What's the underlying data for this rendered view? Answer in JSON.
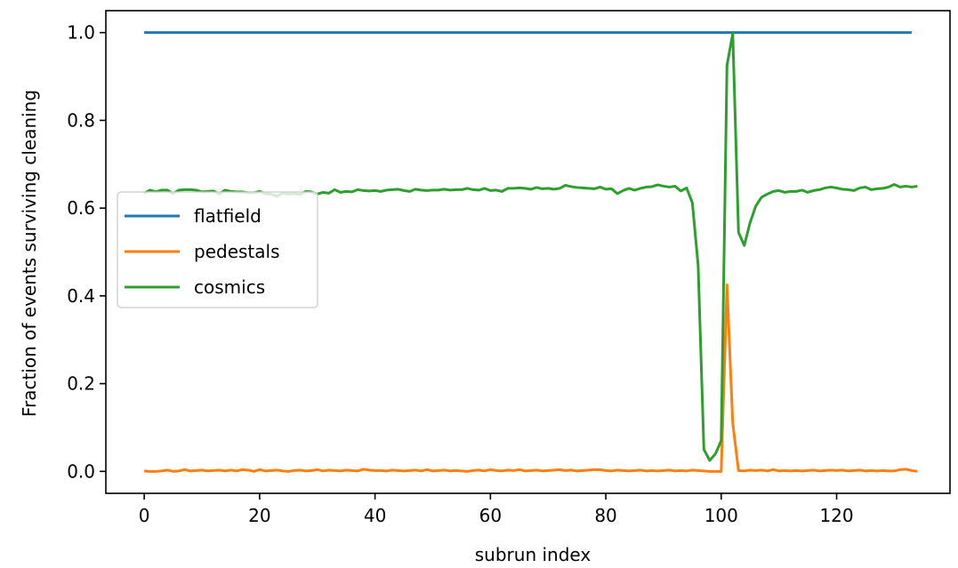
{
  "chart_data": {
    "type": "line",
    "xlabel": "subrun index",
    "ylabel": "Fraction of events surviving cleaning",
    "xlim": [
      -6.65,
      139.65
    ],
    "ylim": [
      -0.05,
      1.05
    ],
    "xticks": [
      0,
      20,
      40,
      60,
      80,
      100,
      120
    ],
    "yticks": [
      0.0,
      0.2,
      0.4,
      0.6,
      0.8,
      1.0
    ],
    "grid": false,
    "legend": "center-left",
    "series": [
      {
        "name": "flatfield",
        "color": "#1f77b4",
        "values": [
          1,
          1,
          1,
          1,
          1,
          1,
          1,
          1,
          1,
          1,
          1,
          1,
          1,
          1,
          1,
          1,
          1,
          1,
          1,
          1,
          1,
          1,
          1,
          1,
          1,
          1,
          1,
          1,
          1,
          1,
          1,
          1,
          1,
          1,
          1,
          1,
          1,
          1,
          1,
          1,
          1,
          1,
          1,
          1,
          1,
          1,
          1,
          1,
          1,
          1,
          1,
          1,
          1,
          1,
          1,
          1,
          1,
          1,
          1,
          1,
          1,
          1,
          1,
          1,
          1,
          1,
          1,
          1,
          1,
          1,
          1,
          1,
          1,
          1,
          1,
          1,
          1,
          1,
          1,
          1,
          1,
          1,
          1,
          1,
          1,
          1,
          1,
          1,
          1,
          1,
          1,
          1,
          1,
          1,
          1,
          1,
          1,
          1,
          1,
          1,
          1,
          1,
          1,
          1,
          1,
          1,
          1,
          1,
          1,
          1,
          1,
          1,
          1,
          1,
          1,
          1,
          1,
          1,
          1,
          1,
          1,
          1,
          1,
          1,
          1,
          1,
          1,
          1,
          1,
          1,
          1,
          1,
          1,
          1
        ]
      },
      {
        "name": "pedestals",
        "color": "#ff7f0e",
        "values": [
          0.001,
          0.0,
          0.0,
          0.001,
          0.003,
          0.0,
          0.001,
          0.004,
          0.001,
          0.002,
          0.003,
          0.001,
          0.002,
          0.003,
          0.001,
          0.003,
          0.001,
          0.004,
          0.003,
          0.0,
          0.004,
          0.001,
          0.002,
          0.003,
          0.001,
          0.0,
          0.002,
          0.003,
          0.001,
          0.002,
          0.004,
          0.001,
          0.003,
          0.002,
          0.001,
          0.003,
          0.002,
          0.001,
          0.005,
          0.003,
          0.002,
          0.002,
          0.001,
          0.003,
          0.002,
          0.001,
          0.002,
          0.003,
          0.001,
          0.004,
          0.001,
          0.002,
          0.003,
          0.001,
          0.002,
          0.001,
          0.0,
          0.002,
          0.003,
          0.001,
          0.004,
          0.002,
          0.001,
          0.003,
          0.002,
          0.004,
          0.001,
          0.002,
          0.003,
          0.001,
          0.002,
          0.003,
          0.004,
          0.002,
          0.003,
          0.001,
          0.002,
          0.003,
          0.004,
          0.004,
          0.002,
          0.001,
          0.003,
          0.002,
          0.001,
          0.002,
          0.003,
          0.001,
          0.002,
          0.001,
          0.002,
          0.003,
          0.001,
          0.002,
          0.001,
          0.003,
          0.002,
          0.001,
          0.0,
          0.0,
          0.0,
          0.425,
          0.11,
          0.002,
          0.001,
          0.003,
          0.002,
          0.003,
          0.001,
          0.004,
          0.001,
          0.002,
          0.001,
          0.002,
          0.001,
          0.002,
          0.003,
          0.001,
          0.002,
          0.003,
          0.002,
          0.003,
          0.001,
          0.002,
          0.003,
          0.001,
          0.002,
          0.001,
          0.002,
          0.001,
          0.001,
          0.004,
          0.005,
          0.002,
          0.0
        ]
      },
      {
        "name": "cosmics",
        "color": "#2ca02c",
        "values": [
          0.634,
          0.641,
          0.637,
          0.641,
          0.641,
          0.633,
          0.641,
          0.642,
          0.642,
          0.641,
          0.637,
          0.638,
          0.639,
          0.632,
          0.641,
          0.638,
          0.637,
          0.637,
          0.635,
          0.635,
          0.638,
          0.633,
          0.632,
          0.627,
          0.634,
          0.632,
          0.633,
          0.631,
          0.638,
          0.637,
          0.632,
          0.636,
          0.634,
          0.642,
          0.636,
          0.638,
          0.637,
          0.642,
          0.64,
          0.639,
          0.64,
          0.638,
          0.641,
          0.642,
          0.643,
          0.64,
          0.638,
          0.643,
          0.641,
          0.64,
          0.641,
          0.641,
          0.643,
          0.641,
          0.642,
          0.642,
          0.645,
          0.642,
          0.641,
          0.645,
          0.64,
          0.641,
          0.638,
          0.645,
          0.645,
          0.646,
          0.645,
          0.643,
          0.647,
          0.644,
          0.645,
          0.643,
          0.645,
          0.652,
          0.649,
          0.647,
          0.646,
          0.645,
          0.644,
          0.648,
          0.643,
          0.644,
          0.633,
          0.64,
          0.645,
          0.641,
          0.645,
          0.648,
          0.649,
          0.653,
          0.65,
          0.648,
          0.65,
          0.639,
          0.646,
          0.612,
          0.47,
          0.05,
          0.025,
          0.04,
          0.07,
          0.925,
          0.998,
          0.545,
          0.515,
          0.567,
          0.605,
          0.625,
          0.632,
          0.638,
          0.64,
          0.636,
          0.638,
          0.638,
          0.641,
          0.636,
          0.64,
          0.642,
          0.646,
          0.648,
          0.646,
          0.643,
          0.642,
          0.64,
          0.646,
          0.648,
          0.642,
          0.644,
          0.645,
          0.648,
          0.654,
          0.648,
          0.65,
          0.648,
          0.65
        ]
      }
    ]
  }
}
